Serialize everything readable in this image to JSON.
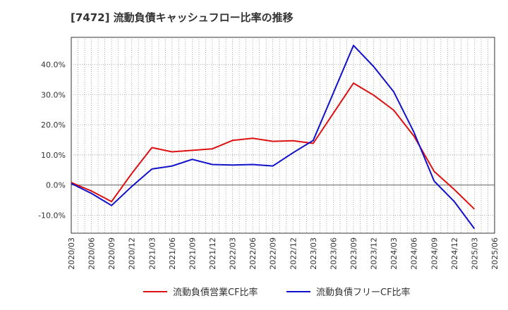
{
  "chart_data": {
    "type": "line",
    "title": "[7472]  流動負債キャッシュフロー比率の推移",
    "xlabel": "",
    "ylabel": "",
    "ylim": [
      -16,
      49
    ],
    "yticks": [
      -10,
      0,
      10,
      20,
      30,
      40
    ],
    "ytick_labels": [
      "-10.0%",
      "0.0%",
      "10.0%",
      "20.0%",
      "30.0%",
      "40.0%"
    ],
    "grid": true,
    "legend_position": "bottom",
    "x": [
      "2020/03",
      "2020/06",
      "2020/09",
      "2020/12",
      "2021/03",
      "2021/06",
      "2021/09",
      "2021/12",
      "2022/03",
      "2022/06",
      "2022/09",
      "2022/12",
      "2023/03",
      "2023/06",
      "2023/09",
      "2023/12",
      "2024/03",
      "2024/06",
      "2024/09",
      "2024/12",
      "2025/03",
      "2025/06"
    ],
    "series": [
      {
        "name": "流動負債営業CF比率",
        "color": "#dd1111",
        "values": [
          0.8,
          -2.0,
          -5.5,
          3.8,
          12.4,
          11.0,
          11.5,
          12.0,
          14.8,
          15.5,
          14.5,
          14.7,
          13.8,
          23.8,
          33.8,
          29.8,
          24.8,
          16.2,
          4.5,
          -1.5,
          -8.0,
          null
        ]
      },
      {
        "name": "流動負債フリーCF比率",
        "color": "#1111cc",
        "values": [
          0.5,
          -2.8,
          -6.8,
          -0.5,
          5.3,
          6.3,
          8.5,
          6.8,
          6.6,
          6.8,
          6.3,
          10.7,
          14.8,
          30.5,
          46.3,
          39.3,
          30.9,
          17.5,
          1.3,
          -5.5,
          -14.5,
          null
        ]
      }
    ]
  }
}
